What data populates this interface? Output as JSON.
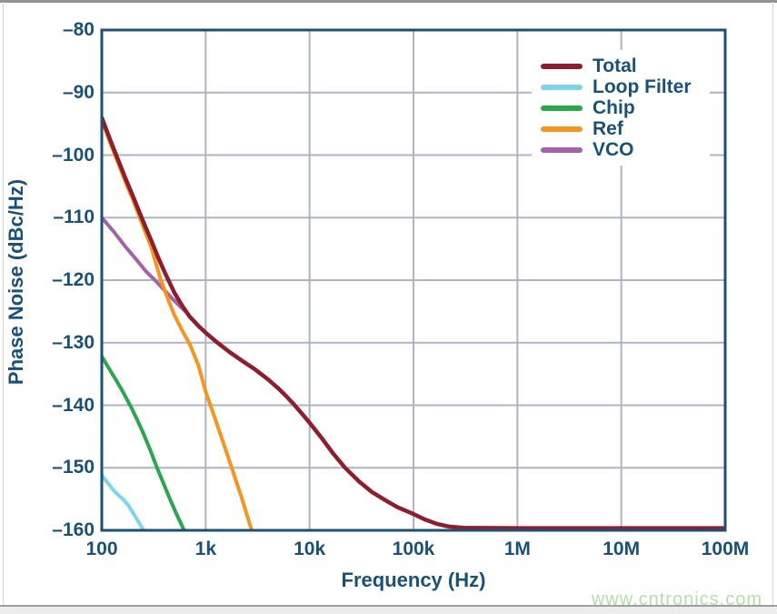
{
  "watermark": "www.cntronics.com",
  "chart_data": {
    "type": "line",
    "title": "",
    "xlabel": "Frequency (Hz)",
    "ylabel": "Phase Noise (dBc/Hz)",
    "x_scale": "log",
    "xlim": [
      100,
      100000000
    ],
    "ylim": [
      -160,
      -80
    ],
    "grid": true,
    "legend_position": "top-right",
    "frame_color": "#1B5077",
    "grid_color": "#AEB4C4",
    "x_ticks": [
      100,
      1000,
      10000,
      100000,
      1000000,
      10000000,
      100000000
    ],
    "x_tick_labels": [
      "100",
      "1k",
      "10k",
      "100k",
      "1M",
      "10M",
      "100M"
    ],
    "y_ticks": [
      -80,
      -90,
      -100,
      -110,
      -120,
      -130,
      -140,
      -150,
      -160
    ],
    "y_tick_labels": [
      "–80",
      "–90",
      "–100",
      "–110",
      "–120",
      "–130",
      "–140",
      "–150",
      "–160"
    ],
    "series": [
      {
        "name": "Total",
        "color": "#8E1E2F",
        "points": [
          [
            100,
            -94
          ],
          [
            120,
            -97.5
          ],
          [
            140,
            -100.3
          ],
          [
            170,
            -103.8
          ],
          [
            200,
            -106.6
          ],
          [
            250,
            -110.6
          ],
          [
            300,
            -113.7
          ],
          [
            350,
            -116.4
          ],
          [
            400,
            -118.6
          ],
          [
            450,
            -120.4
          ],
          [
            500,
            -122
          ],
          [
            600,
            -124.2
          ],
          [
            700,
            -125.8
          ],
          [
            850,
            -127.3
          ],
          [
            1000,
            -128.4
          ],
          [
            1300,
            -130
          ],
          [
            1700,
            -131.5
          ],
          [
            2200,
            -132.8
          ],
          [
            3000,
            -134.3
          ],
          [
            4000,
            -135.9
          ],
          [
            5000,
            -137.3
          ],
          [
            6000,
            -138.6
          ],
          [
            7000,
            -139.8
          ],
          [
            8500,
            -141.4
          ],
          [
            10000,
            -142.8
          ],
          [
            13000,
            -145.2
          ],
          [
            17000,
            -147.8
          ],
          [
            22000,
            -150
          ],
          [
            30000,
            -152.2
          ],
          [
            40000,
            -153.9
          ],
          [
            55000,
            -155.3
          ],
          [
            70000,
            -156.3
          ],
          [
            100000,
            -157.4
          ],
          [
            130000,
            -158.3
          ],
          [
            170000,
            -159
          ],
          [
            220000,
            -159.4
          ],
          [
            300000,
            -159.6
          ],
          [
            1000000,
            -159.65
          ],
          [
            10000000,
            -159.65
          ],
          [
            100000000,
            -159.65
          ]
        ]
      },
      {
        "name": "Loop Filter",
        "color": "#7ED5E8",
        "points": [
          [
            100,
            -151.2
          ],
          [
            115,
            -152.5
          ],
          [
            130,
            -153.6
          ],
          [
            145,
            -154.4
          ],
          [
            160,
            -155
          ],
          [
            180,
            -156
          ],
          [
            205,
            -157.5
          ],
          [
            230,
            -158.9
          ],
          [
            252,
            -160
          ]
        ]
      },
      {
        "name": "Chip",
        "color": "#2AA64D",
        "points": [
          [
            100,
            -132.2
          ],
          [
            120,
            -134.4
          ],
          [
            140,
            -136.2
          ],
          [
            165,
            -138.3
          ],
          [
            190,
            -140.2
          ],
          [
            220,
            -142.4
          ],
          [
            250,
            -144.4
          ],
          [
            290,
            -147
          ],
          [
            340,
            -150
          ],
          [
            390,
            -152.4
          ],
          [
            450,
            -154.9
          ],
          [
            520,
            -157.3
          ],
          [
            620,
            -160
          ]
        ]
      },
      {
        "name": "Ref",
        "color": "#F79420",
        "points": [
          [
            100,
            -94.4
          ],
          [
            120,
            -98
          ],
          [
            140,
            -100.8
          ],
          [
            170,
            -104.4
          ],
          [
            200,
            -107.2
          ],
          [
            250,
            -111.4
          ],
          [
            300,
            -114.8
          ],
          [
            370,
            -120
          ],
          [
            440,
            -123.3
          ],
          [
            500,
            -125.6
          ],
          [
            600,
            -128.2
          ],
          [
            710,
            -130.4
          ],
          [
            850,
            -133.6
          ],
          [
            1000,
            -137.8
          ],
          [
            1200,
            -141.6
          ],
          [
            1450,
            -145.6
          ],
          [
            1780,
            -150
          ],
          [
            2200,
            -154.6
          ],
          [
            2770,
            -160
          ]
        ]
      },
      {
        "name": "VCO",
        "color": "#A263A9",
        "points": [
          [
            100,
            -110
          ],
          [
            130,
            -112.2
          ],
          [
            170,
            -114.7
          ],
          [
            215,
            -116.7
          ],
          [
            270,
            -118.7
          ],
          [
            330,
            -120.1
          ],
          [
            400,
            -121.6
          ],
          [
            480,
            -123
          ],
          [
            560,
            -124.1
          ],
          [
            640,
            -125
          ]
        ]
      }
    ],
    "draw_order": [
      1,
      2,
      4,
      3,
      0
    ],
    "line_widths": [
      4.5,
      4,
      4,
      4,
      4
    ]
  }
}
